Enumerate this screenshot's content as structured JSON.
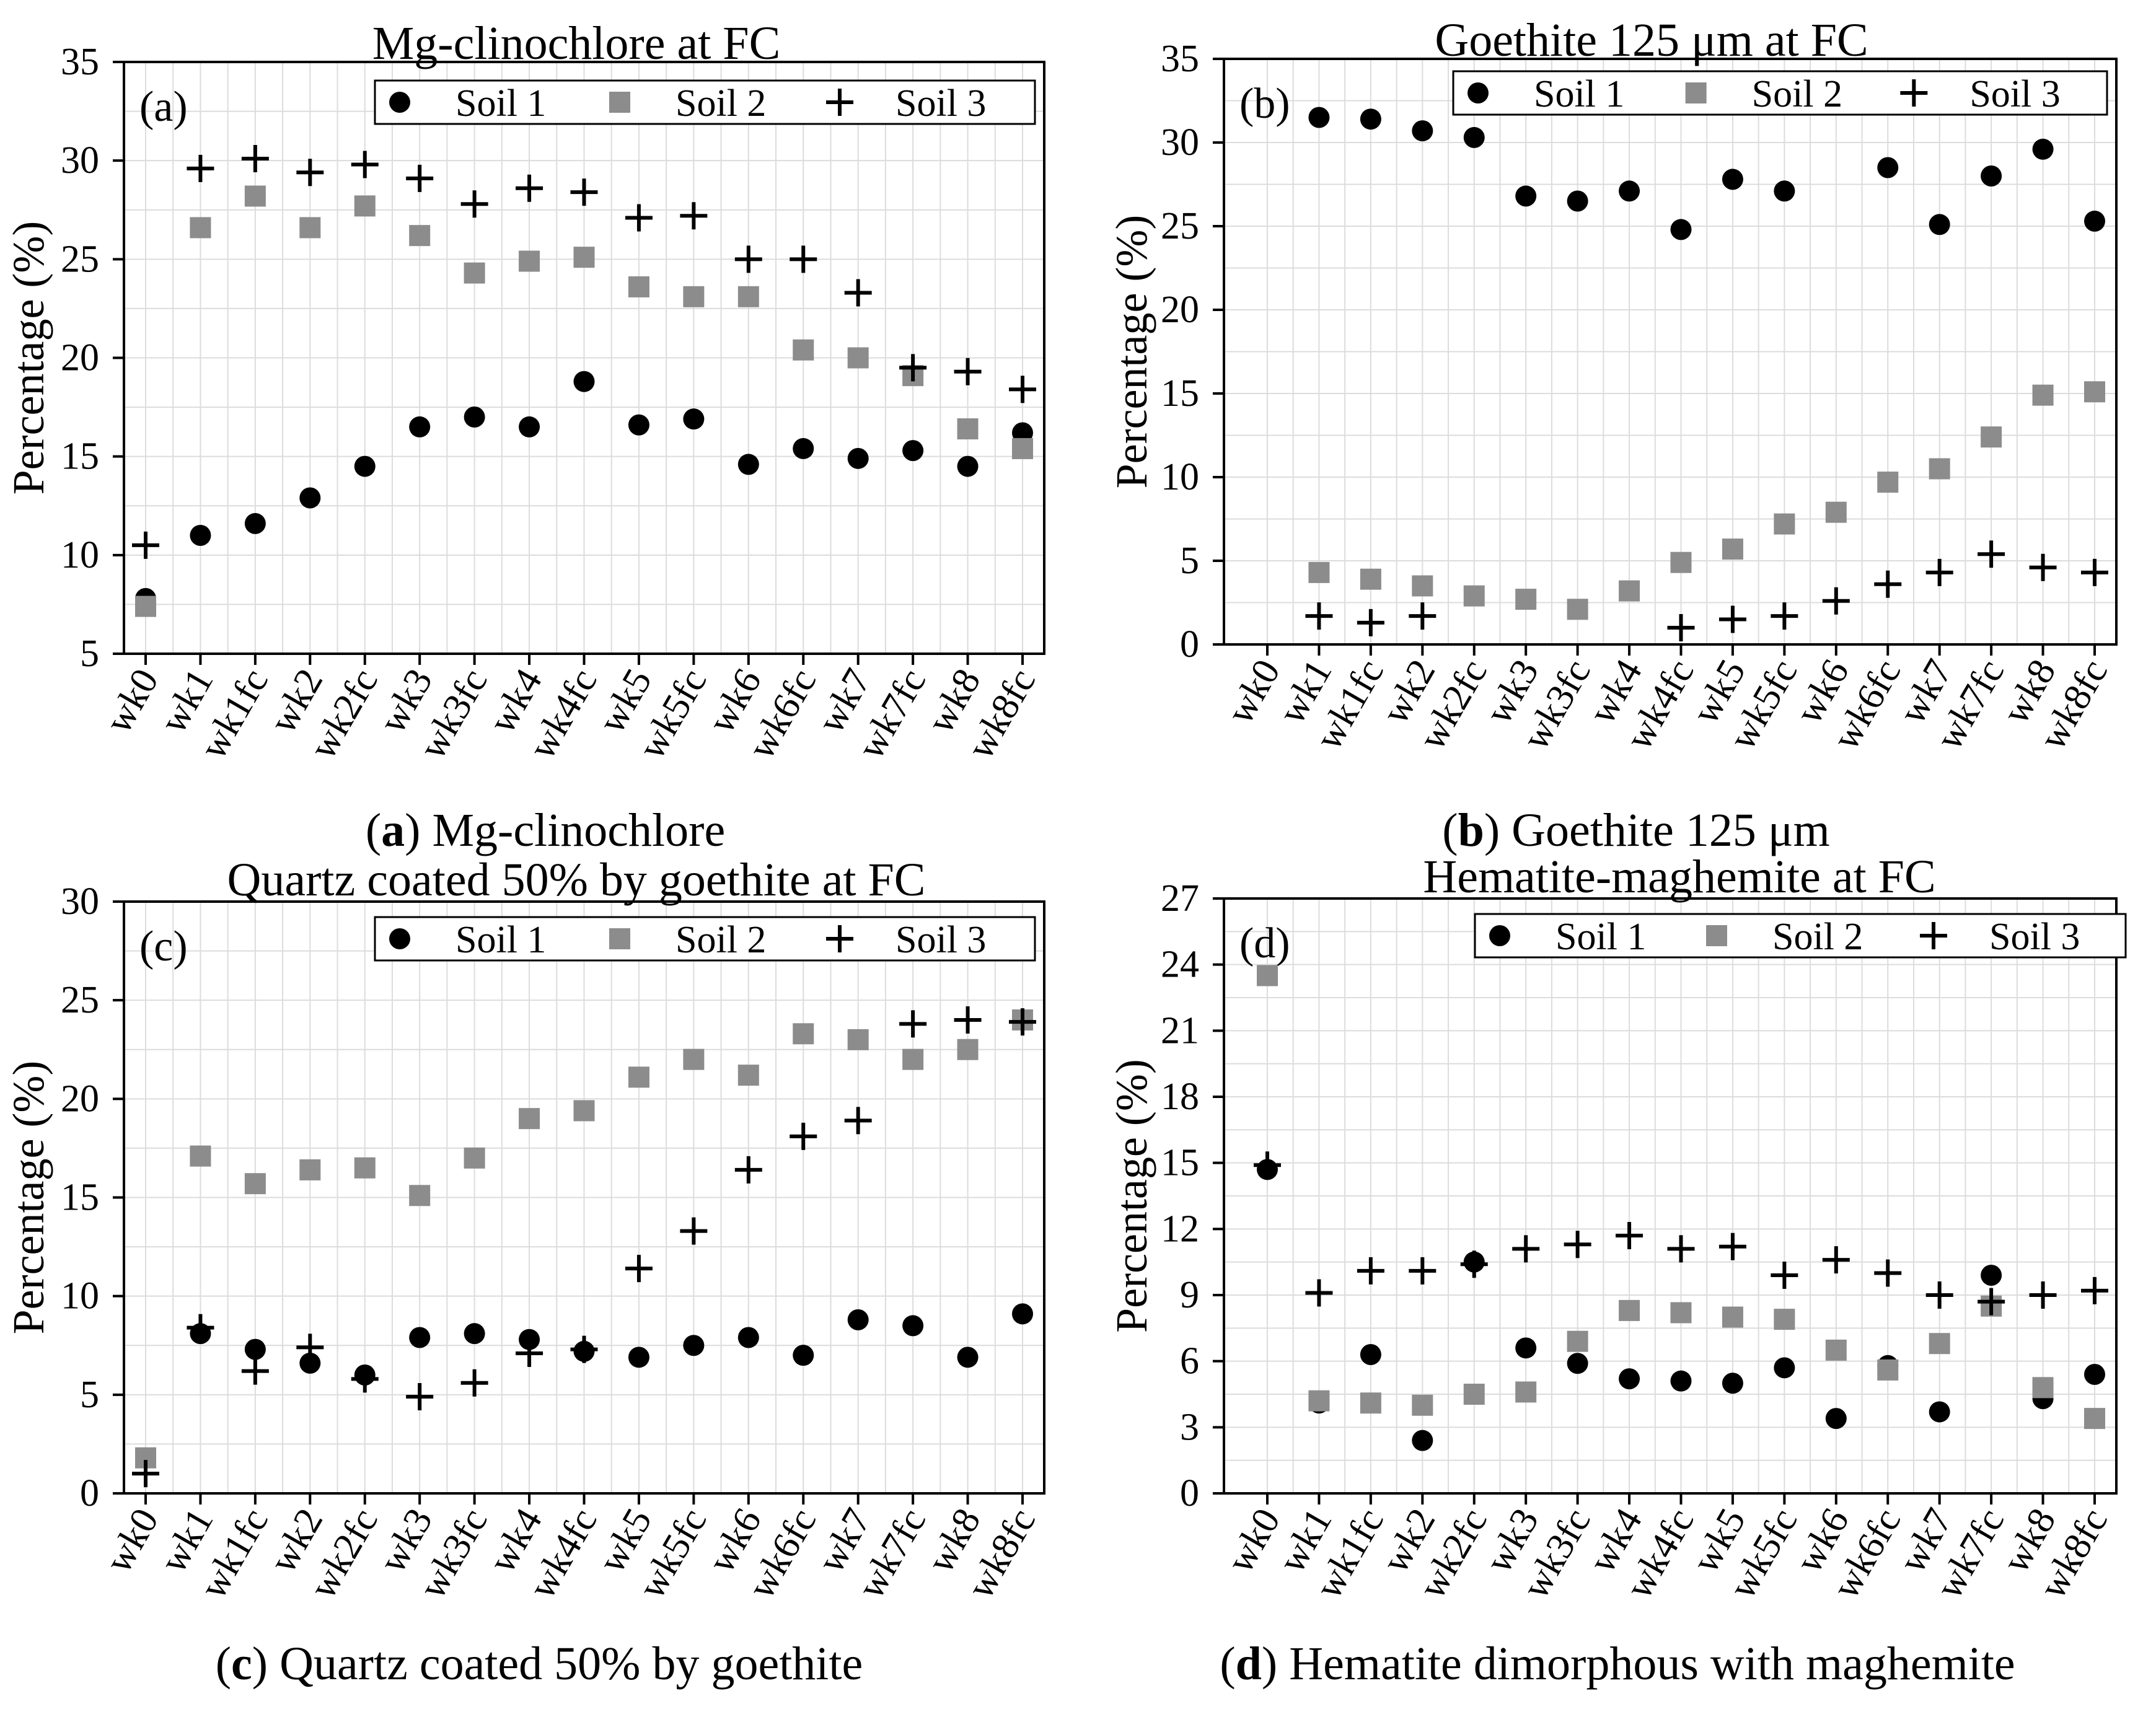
{
  "colors": {
    "soil1": "#000000",
    "soil2": "#8c8c8c",
    "soil3": "#000000",
    "grid": "#dcdcdc"
  },
  "chart_data": [
    {
      "type": "scatter",
      "panel": "(a)",
      "title": "Mg-clinochlore at FC",
      "ylabel": "Percentage (%)",
      "xlabel": "",
      "ylim": [
        5,
        35
      ],
      "yticks": [
        5,
        10,
        15,
        20,
        25,
        30,
        35
      ],
      "categories": [
        "wk0",
        "wk1",
        "wk1fc",
        "wk2",
        "wk2fc",
        "wk3",
        "wk3fc",
        "wk4",
        "wk4fc",
        "wk5",
        "wk5fc",
        "wk6",
        "wk6fc",
        "wk7",
        "wk7fc",
        "wk8",
        "wk8fc"
      ],
      "legend": [
        "Soil 1",
        "Soil 2",
        "Soil 3"
      ],
      "series": [
        {
          "name": "Soil 1",
          "marker": "circle",
          "values": [
            7.8,
            11.0,
            11.6,
            12.9,
            14.5,
            16.5,
            17.0,
            16.5,
            18.8,
            16.6,
            16.9,
            14.6,
            15.4,
            14.9,
            15.3,
            14.5,
            16.2
          ]
        },
        {
          "name": "Soil 2",
          "marker": "square",
          "values": [
            7.4,
            26.6,
            28.2,
            26.6,
            27.7,
            26.2,
            24.3,
            24.9,
            25.1,
            23.6,
            23.1,
            23.1,
            20.4,
            20.0,
            19.1,
            16.4,
            15.4
          ]
        },
        {
          "name": "Soil 3",
          "marker": "plus",
          "values": [
            10.5,
            29.6,
            30.1,
            29.4,
            29.8,
            29.1,
            27.8,
            28.6,
            28.4,
            27.1,
            27.2,
            25.0,
            25.0,
            23.3,
            19.5,
            19.3,
            18.4
          ]
        }
      ],
      "caption_letter": "a",
      "caption_text": " Mg-clinochlore"
    },
    {
      "type": "scatter",
      "panel": "(b)",
      "title": "Goethite 125 μm at FC",
      "ylabel": "Percentage (%)",
      "xlabel": "",
      "ylim": [
        0,
        35
      ],
      "yticks": [
        0,
        5,
        10,
        15,
        20,
        25,
        30,
        35
      ],
      "categories": [
        "wk0",
        "wk1",
        "wk1fc",
        "wk2",
        "wk2fc",
        "wk3",
        "wk3fc",
        "wk4",
        "wk4fc",
        "wk5",
        "wk5fc",
        "wk6",
        "wk6fc",
        "wk7",
        "wk7fc",
        "wk8",
        "wk8fc"
      ],
      "legend": [
        "Soil 1",
        "Soil 2",
        "Soil 3"
      ],
      "series": [
        {
          "name": "Soil 1",
          "marker": "circle",
          "values": [
            null,
            31.5,
            31.4,
            30.7,
            30.3,
            26.8,
            26.5,
            27.1,
            24.8,
            27.8,
            27.1,
            null,
            28.5,
            25.1,
            28.0,
            29.6,
            25.3
          ]
        },
        {
          "name": "Soil 2",
          "marker": "square",
          "values": [
            null,
            4.3,
            3.9,
            3.5,
            2.9,
            2.7,
            2.1,
            3.2,
            4.9,
            5.7,
            7.2,
            7.9,
            9.7,
            10.5,
            12.4,
            14.9,
            15.1
          ]
        },
        {
          "name": "Soil 3",
          "marker": "plus",
          "values": [
            null,
            1.7,
            1.3,
            1.7,
            null,
            null,
            null,
            null,
            1.0,
            1.5,
            1.7,
            2.6,
            3.6,
            4.3,
            5.4,
            4.6,
            4.3
          ]
        }
      ],
      "caption_letter": "b",
      "caption_text": " Goethite 125 μm"
    },
    {
      "type": "scatter",
      "panel": "(c)",
      "title": "Quartz coated 50% by goethite at FC",
      "ylabel": "Percentage (%)",
      "xlabel": "",
      "ylim": [
        0,
        30
      ],
      "yticks": [
        0,
        5,
        10,
        15,
        20,
        25,
        30
      ],
      "categories": [
        "wk0",
        "wk1",
        "wk1fc",
        "wk2",
        "wk2fc",
        "wk3",
        "wk3fc",
        "wk4",
        "wk4fc",
        "wk5",
        "wk5fc",
        "wk6",
        "wk6fc",
        "wk7",
        "wk7fc",
        "wk8",
        "wk8fc"
      ],
      "legend": [
        "Soil 1",
        "Soil 2",
        "Soil 3"
      ],
      "series": [
        {
          "name": "Soil 1",
          "marker": "circle",
          "values": [
            null,
            8.1,
            7.3,
            6.6,
            6.0,
            7.9,
            8.1,
            7.8,
            7.2,
            6.9,
            7.5,
            7.9,
            7.0,
            8.8,
            8.5,
            6.9,
            9.1
          ]
        },
        {
          "name": "Soil 2",
          "marker": "square",
          "values": [
            1.8,
            17.1,
            15.7,
            16.4,
            16.5,
            15.1,
            17.0,
            19.0,
            19.4,
            21.1,
            22.0,
            21.2,
            23.3,
            23.0,
            22.0,
            22.5,
            24.0
          ]
        },
        {
          "name": "Soil 3",
          "marker": "plus",
          "values": [
            1.0,
            8.4,
            6.2,
            7.4,
            5.8,
            4.9,
            5.6,
            7.1,
            7.3,
            11.4,
            13.3,
            16.4,
            18.1,
            18.9,
            23.8,
            24.0,
            23.9
          ]
        }
      ],
      "caption_letter": "c",
      "caption_text": " Quartz coated 50% by goethite"
    },
    {
      "type": "scatter",
      "panel": "(d)",
      "title": "Hematite-maghemite at FC",
      "ylabel": "Percentage (%)",
      "xlabel": "",
      "ylim": [
        0,
        27
      ],
      "yticks": [
        0,
        3,
        6,
        9,
        12,
        15,
        18,
        21,
        24,
        27
      ],
      "categories": [
        "wk0",
        "wk1",
        "wk1fc",
        "wk2",
        "wk2fc",
        "wk3",
        "wk3fc",
        "wk4",
        "wk4fc",
        "wk5",
        "wk5fc",
        "wk6",
        "wk6fc",
        "wk7",
        "wk7fc",
        "wk8",
        "wk8fc"
      ],
      "legend": [
        "Soil 1",
        "Soil 2",
        "Soil 3"
      ],
      "series": [
        {
          "name": "Soil 1",
          "marker": "circle",
          "values": [
            14.7,
            4.1,
            6.3,
            2.4,
            10.5,
            6.6,
            5.9,
            5.2,
            5.1,
            5.0,
            5.7,
            3.4,
            5.8,
            3.7,
            9.9,
            4.3,
            5.4
          ]
        },
        {
          "name": "Soil 2",
          "marker": "square",
          "values": [
            23.5,
            4.2,
            4.1,
            4.0,
            4.5,
            4.6,
            6.9,
            8.3,
            8.2,
            8.0,
            7.9,
            6.5,
            5.6,
            6.8,
            8.5,
            4.8,
            3.4
          ]
        },
        {
          "name": "Soil 3",
          "marker": "plus",
          "values": [
            14.9,
            9.1,
            10.1,
            10.1,
            10.4,
            11.1,
            11.3,
            11.7,
            11.1,
            11.2,
            9.9,
            10.6,
            10.0,
            9.0,
            8.7,
            9.0,
            9.2
          ]
        }
      ],
      "caption_letter": "d",
      "caption_text": " Hematite dimorphous with maghemite"
    }
  ]
}
